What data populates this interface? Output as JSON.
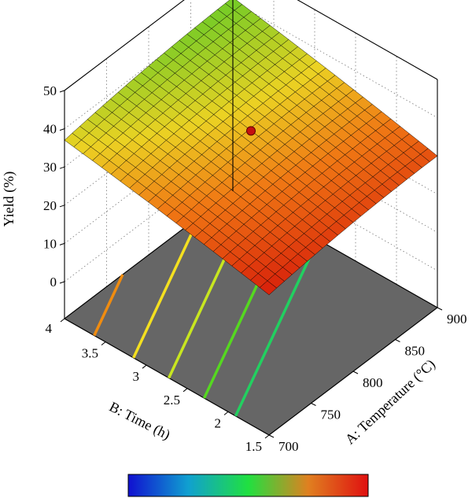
{
  "chart_data": {
    "type": "surface",
    "title": "",
    "z_axis": {
      "label": "Yield (%)",
      "ticks": [
        "0",
        "10",
        "20",
        "30",
        "40",
        "50"
      ],
      "range": [
        0,
        50
      ]
    },
    "a_axis": {
      "label": "A: Temperature (°C)",
      "ticks": [
        "700",
        "750",
        "800",
        "850",
        "900"
      ],
      "range": [
        700,
        900
      ]
    },
    "b_axis": {
      "label": "B: Time (h)",
      "ticks": [
        "1.5",
        "2",
        "2.5",
        "3",
        "3.5",
        "4"
      ],
      "range": [
        1.5,
        4
      ]
    },
    "surface_corner_yields": [
      {
        "temperature": 700,
        "time": 1.5,
        "yield": 27
      },
      {
        "temperature": 700,
        "time": 4,
        "yield": 37
      },
      {
        "temperature": 900,
        "time": 1.5,
        "yield": 30
      },
      {
        "temperature": 900,
        "time": 4,
        "yield": 41
      }
    ],
    "design_point": {
      "temperature": 800,
      "time": 2.75,
      "yield": 38
    },
    "contour_colors": [
      "#f08c10",
      "#f4e020",
      "#c8e620",
      "#55d820",
      "#22d060"
    ],
    "colorbar_colors": [
      "#1010d0",
      "#10a0d0",
      "#20e040",
      "#e08020",
      "#e01010"
    ],
    "grid": true
  }
}
